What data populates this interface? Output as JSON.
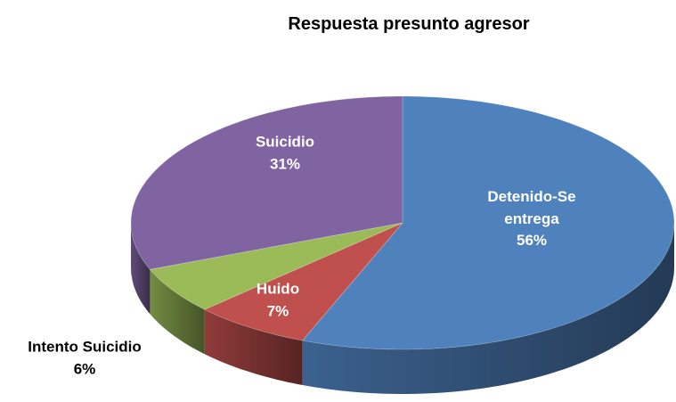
{
  "chart_data": {
    "type": "pie3d",
    "title": "Respuesta presunto agresor",
    "categories": [
      "Detenido-Se entrega",
      "Huido",
      "Intento Suicidio",
      "Suicidio"
    ],
    "values": [
      56,
      7,
      6,
      31
    ],
    "value_labels": [
      "56%",
      "7%",
      "6%",
      "31%"
    ],
    "colors": [
      "#4f81bd",
      "#c0504d",
      "#9bbb59",
      "#8064a2"
    ]
  }
}
